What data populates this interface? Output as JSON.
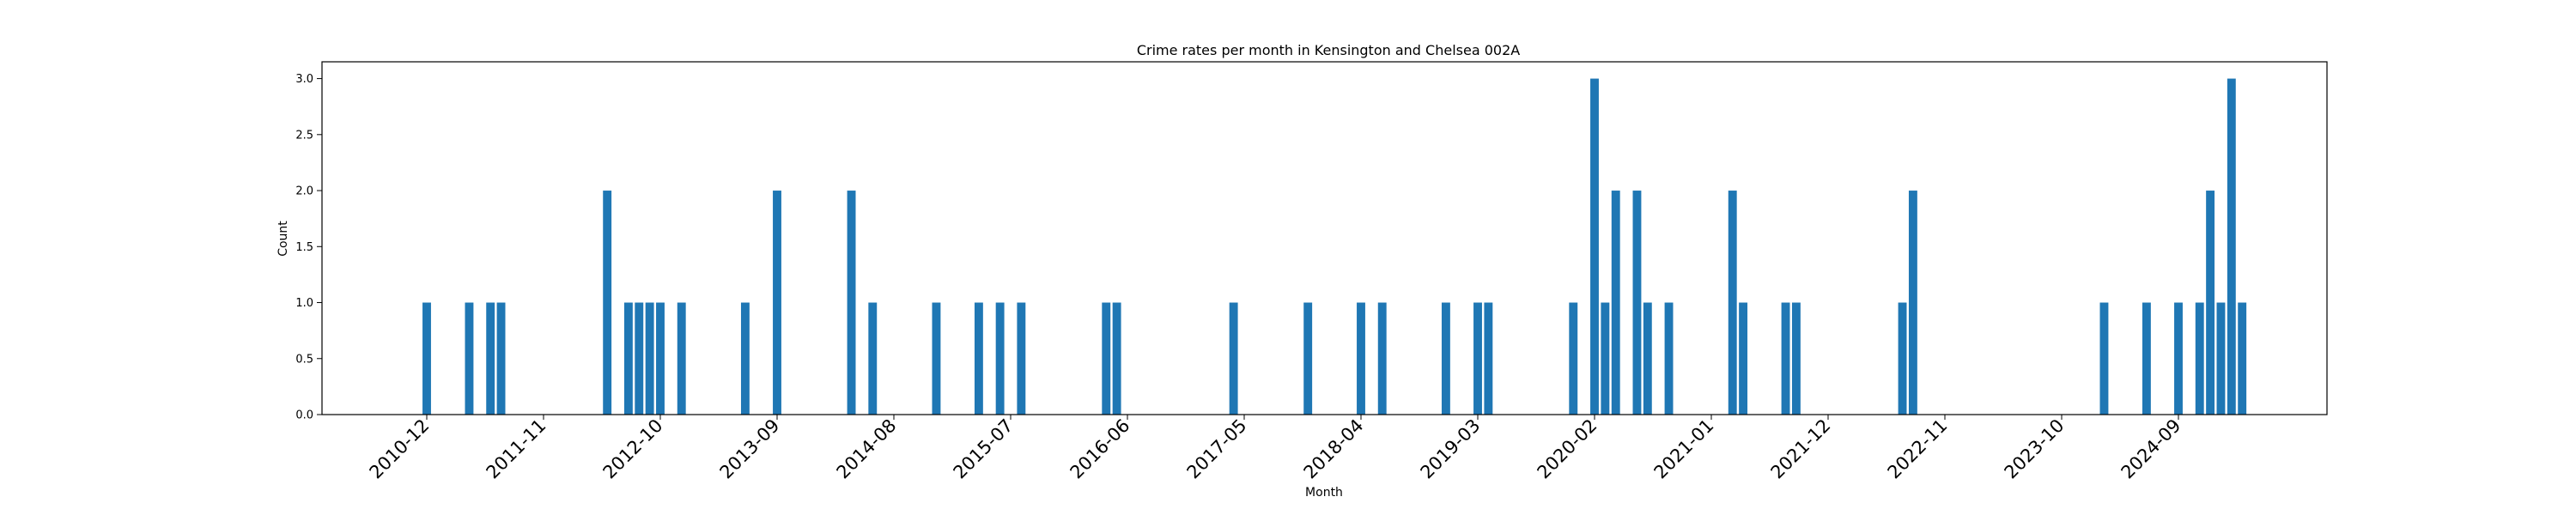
{
  "chart_data": {
    "type": "bar",
    "title": "Crime rates per month in Kensington and Chelsea 002A",
    "xlabel": "Month",
    "ylabel": "Count",
    "ylim": [
      0,
      3.15
    ],
    "yticks": [
      "0.0",
      "0.5",
      "1.0",
      "1.5",
      "2.0",
      "2.5",
      "3.0"
    ],
    "xtick_labels": [
      "2010-12",
      "2011-11",
      "2012-10",
      "2013-09",
      "2014-08",
      "2015-07",
      "2016-06",
      "2017-05",
      "2018-04",
      "2019-03",
      "2020-02",
      "2021-01",
      "2021-12",
      "2022-11",
      "2023-10",
      "2024-09"
    ],
    "grid": false,
    "bar_color": "#1f77b4",
    "categories": [
      "2010-12",
      "2011-04",
      "2011-06",
      "2011-07",
      "2012-05",
      "2012-07",
      "2012-08",
      "2012-09",
      "2012-10",
      "2012-12",
      "2013-06",
      "2013-09",
      "2014-04",
      "2014-06",
      "2015-00",
      "2015-04",
      "2015-06",
      "2015-08",
      "2016-04",
      "2016-05",
      "2017-04",
      "2017-11",
      "2018-04",
      "2018-06",
      "2019-00",
      "2019-03",
      "2019-04",
      "2020-00",
      "2020-02",
      "2020-03",
      "2020-04",
      "2020-06",
      "2020-07",
      "2020-09",
      "2021-03",
      "2021-04",
      "2021-08",
      "2021-09",
      "2022-07",
      "2022-08",
      "2024-02",
      "2024-06",
      "2024-09",
      "2024-11",
      "2024-12",
      "2025-01",
      "2025-02",
      "2025-03"
    ],
    "values": [
      1,
      1,
      1,
      1,
      2,
      1,
      1,
      1,
      1,
      1,
      1,
      2,
      2,
      1,
      1,
      1,
      1,
      1,
      1,
      1,
      1,
      1,
      1,
      1,
      1,
      1,
      1,
      1,
      3,
      1,
      2,
      2,
      1,
      1,
      2,
      1,
      1,
      1,
      1,
      2,
      1,
      1,
      1,
      1,
      2,
      1,
      3,
      1
    ]
  }
}
